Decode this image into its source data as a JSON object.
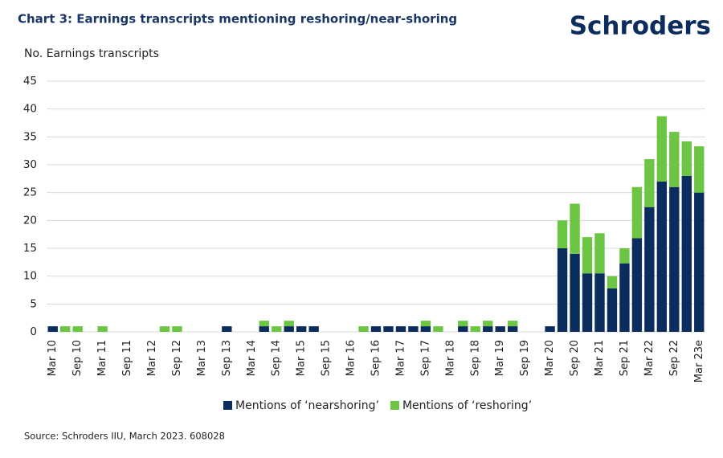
{
  "chart_data": {
    "type": "stacked_bar",
    "title": "Chart 3: Earnings transcripts mentioning reshoring/near-shoring",
    "logo": "Schroders",
    "y_label": "No. Earnings transcripts",
    "source": "Source: Schroders IIU, March 2023. 608028",
    "categories": [
      "Mar 10",
      null,
      "Sep 10",
      null,
      "Mar 11",
      null,
      "Sep 11",
      null,
      "Mar 12",
      null,
      "Sep 12",
      null,
      "Mar 13",
      null,
      "Sep 13",
      null,
      "Mar 14",
      null,
      "Sep 14",
      null,
      "Mar 15",
      null,
      "Sep 15",
      null,
      "Mar 16",
      null,
      "Sep 16",
      null,
      "Mar 17",
      null,
      "Sep 17",
      null,
      "Mar 18",
      null,
      "Sep 18",
      null,
      "Mar 19",
      null,
      "Sep 19",
      null,
      "Mar 20",
      null,
      "Sep 20",
      null,
      "Mar 21",
      null,
      "Sep 21",
      null,
      "Mar 22",
      null,
      "Sep 22",
      null,
      "Mar 23e"
    ],
    "series": [
      {
        "name": "Mentions of ‘nearshoring’",
        "color": "#0b2d5e",
        "values": [
          1,
          0,
          0,
          0,
          0,
          0,
          0,
          0,
          0,
          0,
          0,
          0,
          0,
          0,
          1,
          0,
          0,
          1,
          0,
          1,
          1,
          1,
          0,
          0,
          0,
          0,
          1,
          1,
          1,
          1,
          1,
          0,
          0,
          1,
          0,
          1,
          1,
          1,
          0,
          0,
          1,
          15,
          14,
          10.5,
          10.5,
          7.8,
          12.3,
          16.8,
          22.4,
          27,
          26,
          28,
          25
        ]
      },
      {
        "name": "Mentions of ‘reshoring’",
        "color": "#6cc644",
        "values": [
          0,
          1,
          1,
          0,
          1,
          0,
          0,
          0,
          0,
          1,
          1,
          0,
          0,
          0,
          0,
          0,
          0,
          1,
          1,
          1,
          0,
          0,
          0,
          0,
          0,
          1,
          0,
          0,
          0,
          0,
          1,
          1,
          0,
          1,
          1,
          1,
          0,
          1,
          0,
          0,
          0,
          5,
          9,
          6.5,
          7.2,
          2.2,
          2.7,
          9.2,
          8.6,
          11.7,
          9.9,
          6.2,
          8.3
        ]
      }
    ],
    "ylim": [
      0,
      45
    ],
    "yticks": [
      0,
      5,
      10,
      15,
      20,
      25,
      30,
      35,
      40,
      45
    ],
    "grid": true,
    "legend": "bottom"
  }
}
